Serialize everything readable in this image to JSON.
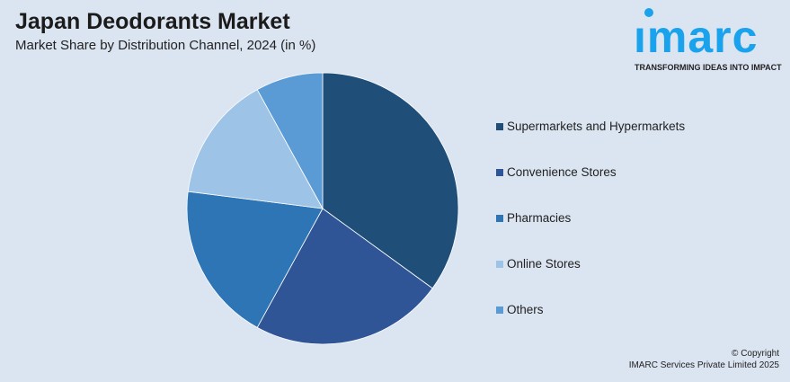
{
  "header": {
    "title": "Japan Deodorants Market",
    "subtitle": "Market Share by Distribution Channel, 2024 (in %)"
  },
  "logo": {
    "word": "imarc",
    "tagline": "TRANSFORMING IDEAS INTO IMPACT",
    "color": "#1aa3ec"
  },
  "chart_data": {
    "type": "pie",
    "title": "Japan Deodorants Market",
    "subtitle": "Market Share by Distribution Channel, 2024 (in %)",
    "categories": [
      "Supermarkets and Hypermarkets",
      "Convenience Stores",
      "Pharmacies",
      "Online Stores",
      "Others"
    ],
    "values": [
      35,
      23,
      19,
      15,
      8
    ],
    "colors": [
      "#1f4e79",
      "#2f5597",
      "#2e75b6",
      "#9dc3e6",
      "#5b9bd5"
    ],
    "start": "top, clockwise",
    "legend": "right"
  },
  "footer": {
    "copyright": "© Copyright",
    "company": "IMARC Services Private Limited 2025"
  }
}
